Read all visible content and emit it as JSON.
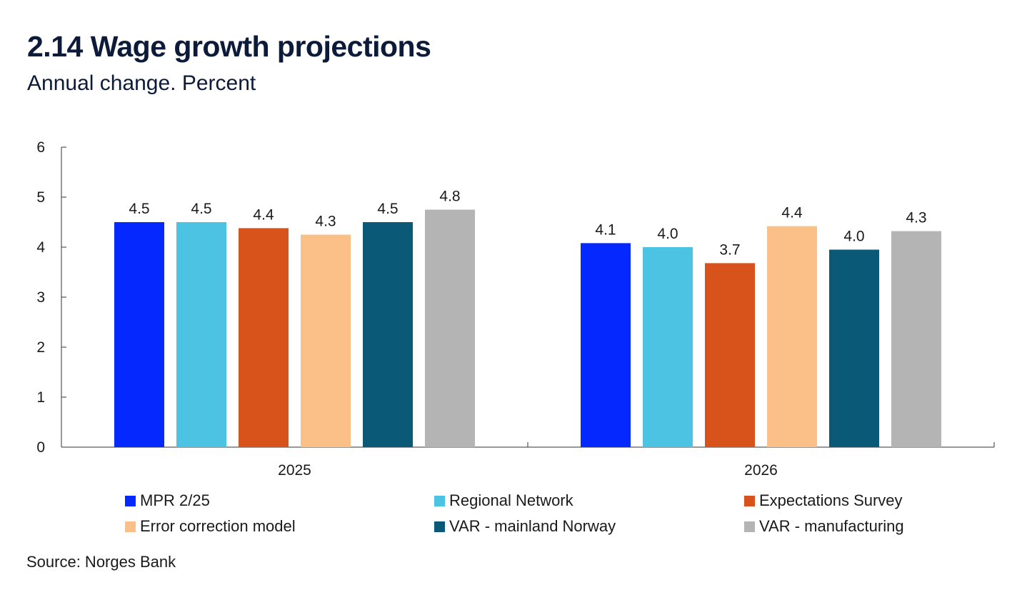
{
  "header": {
    "title": "2.14 Wage growth projections",
    "subtitle": "Annual change. Percent"
  },
  "chart_data": {
    "type": "bar",
    "title": "2.14 Wage growth projections",
    "subtitle": "Annual change. Percent",
    "xlabel": "",
    "ylabel": "",
    "categories": [
      "2025",
      "2026"
    ],
    "ylim": [
      0,
      6
    ],
    "yticks": [
      0,
      1,
      2,
      3,
      4,
      5,
      6
    ],
    "grid": false,
    "legend_position": "bottom",
    "series": [
      {
        "name": "MPR 2/25",
        "color": "#0528ff",
        "values": [
          4.5,
          4.08
        ],
        "labels": [
          "4.5",
          "4.1"
        ]
      },
      {
        "name": "Regional Network",
        "color": "#4cc3e2",
        "values": [
          4.5,
          4.0
        ],
        "labels": [
          "4.5",
          "4.0"
        ]
      },
      {
        "name": "Expectations Survey",
        "color": "#d8531b",
        "values": [
          4.38,
          3.68
        ],
        "labels": [
          "4.4",
          "3.7"
        ]
      },
      {
        "name": "Error correction model",
        "color": "#fbc087",
        "values": [
          4.25,
          4.42
        ],
        "labels": [
          "4.3",
          "4.4"
        ]
      },
      {
        "name": "VAR - mainland Norway",
        "color": "#0a5a77",
        "values": [
          4.5,
          3.95
        ],
        "labels": [
          "4.5",
          "4.0"
        ]
      },
      {
        "name": "VAR - manufacturing",
        "color": "#b4b4b4",
        "values": [
          4.75,
          4.32
        ],
        "labels": [
          "4.8",
          "4.3"
        ]
      }
    ]
  },
  "source": "Source: Norges Bank"
}
